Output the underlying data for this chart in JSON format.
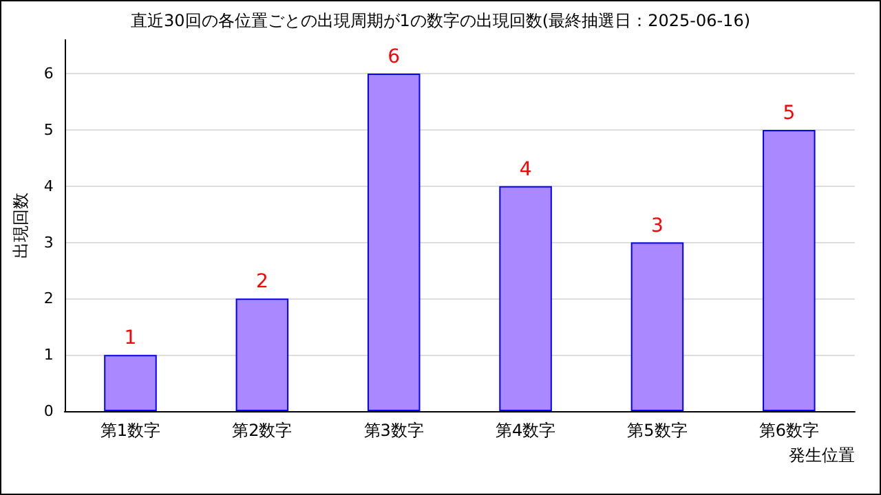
{
  "chart_data": {
    "type": "bar",
    "title": "直近30回の各位置ごとの出現周期が1の数字の出現回数(最終抽選日：2025-06-16)",
    "xlabel": "発生位置",
    "ylabel": "出現回数",
    "categories": [
      "第1数字",
      "第2数字",
      "第3数字",
      "第4数字",
      "第5数字",
      "第6数字"
    ],
    "values": [
      1,
      2,
      6,
      4,
      3,
      5
    ],
    "color": "#aa88ff",
    "data_labels": true,
    "ylim": [
      0,
      6.6
    ],
    "yticks": [
      0,
      1,
      2,
      3,
      4,
      5,
      6
    ],
    "grid": "y"
  }
}
